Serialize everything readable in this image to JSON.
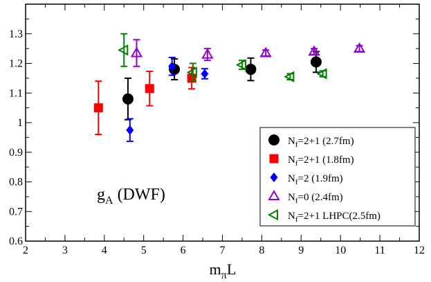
{
  "chart_data": {
    "type": "scatter",
    "title": "",
    "annotation": {
      "main": "g",
      "sub": "A",
      "rest": " (DWF)"
    },
    "xlabel": {
      "main": "m",
      "sub": "π",
      "rest": "L"
    },
    "ylabel": "",
    "xlim": [
      2,
      12
    ],
    "ylim": [
      0.6,
      1.4
    ],
    "xticks": [
      2,
      3,
      4,
      5,
      6,
      7,
      8,
      9,
      10,
      11,
      12
    ],
    "xtick_labels": [
      "2",
      "3",
      "4",
      "5",
      "6",
      "7",
      "8",
      "9",
      "10",
      "11",
      "12"
    ],
    "yticks": [
      0.6,
      0.7,
      0.8,
      0.9,
      1.0,
      1.1,
      1.2,
      1.3
    ],
    "ytick_labels": [
      "0.6",
      "0.7",
      "0.8",
      "0.9",
      "1",
      "1.1",
      "1.2",
      "1.3"
    ],
    "grid": false,
    "legend_position": "bottom-right",
    "series": [
      {
        "name": "Nf=2+1 (2.7fm)",
        "legend": {
          "pre": "N",
          "sub": "f",
          "post": "=2+1 (2.7fm)"
        },
        "marker": "circle",
        "color": "#000000",
        "points": [
          {
            "x": 4.6,
            "y": 1.08,
            "err": 0.07
          },
          {
            "x": 5.78,
            "y": 1.18,
            "err": 0.035
          },
          {
            "x": 7.72,
            "y": 1.18,
            "err": 0.038
          },
          {
            "x": 9.38,
            "y": 1.205,
            "err": 0.035
          }
        ]
      },
      {
        "name": "Nf=2+1 (1.8fm)",
        "legend": {
          "pre": "N",
          "sub": "f",
          "post": "=2+1 (1.8fm)"
        },
        "marker": "square",
        "color": "#ff0000",
        "points": [
          {
            "x": 3.85,
            "y": 1.05,
            "err": 0.09
          },
          {
            "x": 5.15,
            "y": 1.115,
            "err": 0.058
          },
          {
            "x": 6.22,
            "y": 1.15,
            "err": 0.036
          }
        ]
      },
      {
        "name": "Nf=2 (1.9fm)",
        "legend": {
          "pre": "N",
          "sub": "f",
          "post": "=2 (1.9fm)"
        },
        "marker": "diamond",
        "color": "#0000ff",
        "points": [
          {
            "x": 4.65,
            "y": 0.975,
            "err": 0.038
          },
          {
            "x": 5.72,
            "y": 1.19,
            "err": 0.03
          },
          {
            "x": 6.55,
            "y": 1.165,
            "err": 0.017
          }
        ]
      },
      {
        "name": "Nf=0 (2.4fm)",
        "legend": {
          "pre": "N",
          "sub": "f",
          "post": "=0 (2.4fm)"
        },
        "marker": "triangle-up",
        "color": "#9400d3",
        "points": [
          {
            "x": 4.82,
            "y": 1.235,
            "err": 0.045
          },
          {
            "x": 6.62,
            "y": 1.23,
            "err": 0.02
          },
          {
            "x": 8.1,
            "y": 1.235,
            "err": 0.01
          },
          {
            "x": 9.33,
            "y": 1.24,
            "err": 0.01
          },
          {
            "x": 10.48,
            "y": 1.25,
            "err": 0.01
          }
        ]
      },
      {
        "name": "Nf=2+1 LHPC(2.5fm)",
        "legend": {
          "pre": "N",
          "sub": "f",
          "post": "=2+1 LHPC(2.5fm)"
        },
        "marker": "triangle-left",
        "color": "#008000",
        "points": [
          {
            "x": 4.5,
            "y": 1.245,
            "err": 0.055
          },
          {
            "x": 6.25,
            "y": 1.17,
            "err": 0.03
          },
          {
            "x": 7.5,
            "y": 1.195,
            "err": 0.015
          },
          {
            "x": 8.72,
            "y": 1.155,
            "err": 0.01
          },
          {
            "x": 9.55,
            "y": 1.165,
            "err": 0.01
          }
        ]
      }
    ]
  }
}
